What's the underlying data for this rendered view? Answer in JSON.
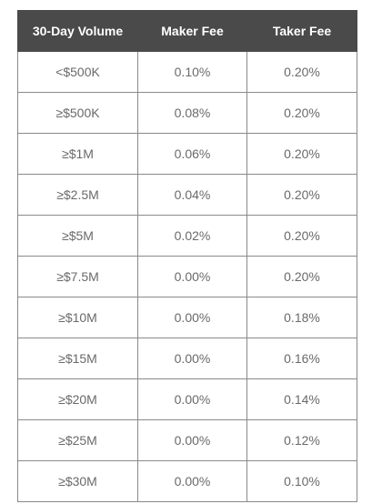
{
  "table": {
    "headers": [
      "30-Day Volume",
      "Maker Fee",
      "Taker Fee"
    ],
    "rows": [
      [
        "<$500K",
        "0.10%",
        "0.20%"
      ],
      [
        "≥$500K",
        "0.08%",
        "0.20%"
      ],
      [
        "≥$1M",
        "0.06%",
        "0.20%"
      ],
      [
        "≥$2.5M",
        "0.04%",
        "0.20%"
      ],
      [
        "≥$5M",
        "0.02%",
        "0.20%"
      ],
      [
        "≥$7.5M",
        "0.00%",
        "0.20%"
      ],
      [
        "≥$10M",
        "0.00%",
        "0.18%"
      ],
      [
        "≥$15M",
        "0.00%",
        "0.16%"
      ],
      [
        "≥$20M",
        "0.00%",
        "0.14%"
      ],
      [
        "≥$25M",
        "0.00%",
        "0.12%"
      ],
      [
        "≥$30M",
        "0.00%",
        "0.10%"
      ]
    ]
  },
  "colors": {
    "header_bg": "#4a4a4a",
    "header_text": "#ffffff",
    "cell_text": "#6a6a6a",
    "border": "#8a8a8a"
  }
}
